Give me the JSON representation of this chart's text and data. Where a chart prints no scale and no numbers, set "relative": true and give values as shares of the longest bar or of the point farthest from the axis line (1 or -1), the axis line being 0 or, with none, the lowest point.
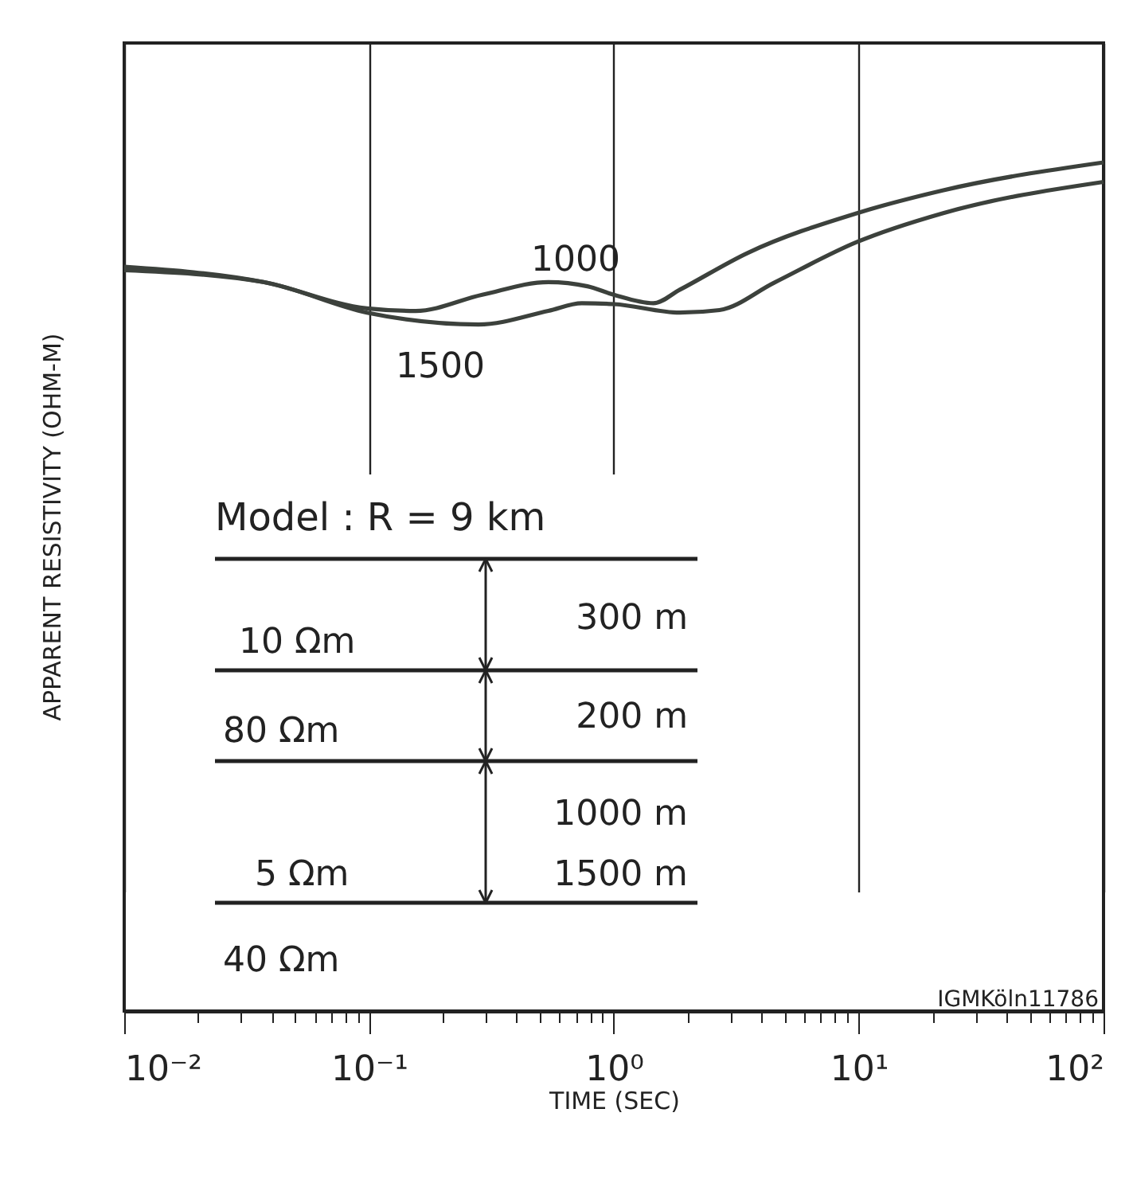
{
  "chart_data": {
    "type": "line",
    "relative": true,
    "log": "x",
    "xlabel": "TIME (SEC)",
    "ylabel": "APPARENT RESISTIVITY (OHM-M)",
    "xlim": [
      0.01,
      100
    ],
    "xticks": [
      {
        "value": 0.01,
        "label": "10⁻²"
      },
      {
        "value": 0.02,
        "label": null
      },
      {
        "value": 0.03,
        "label": null
      },
      {
        "value": 0.04,
        "label": null
      },
      {
        "value": 0.05,
        "label": null
      },
      {
        "value": 0.06,
        "label": null
      },
      {
        "value": 0.07,
        "label": null
      },
      {
        "value": 0.08,
        "label": null
      },
      {
        "value": 0.09,
        "label": null
      },
      {
        "value": 0.1,
        "label": "10⁻¹"
      },
      {
        "value": 0.2,
        "label": null
      },
      {
        "value": 0.3,
        "label": null
      },
      {
        "value": 0.4,
        "label": null
      },
      {
        "value": 0.5,
        "label": null
      },
      {
        "value": 0.6,
        "label": null
      },
      {
        "value": 0.7,
        "label": null
      },
      {
        "value": 0.8,
        "label": null
      },
      {
        "value": 0.9,
        "label": null
      },
      {
        "value": 1,
        "label": "10⁰"
      },
      {
        "value": 2,
        "label": null
      },
      {
        "value": 3,
        "label": null
      },
      {
        "value": 4,
        "label": null
      },
      {
        "value": 5,
        "label": null
      },
      {
        "value": 6,
        "label": null
      },
      {
        "value": 7,
        "label": null
      },
      {
        "value": 8,
        "label": null
      },
      {
        "value": 9,
        "label": null
      },
      {
        "value": 10,
        "label": "10¹"
      },
      {
        "value": 20,
        "label": null
      },
      {
        "value": 30,
        "label": null
      },
      {
        "value": 40,
        "label": null
      },
      {
        "value": 50,
        "label": null
      },
      {
        "value": 60,
        "label": null
      },
      {
        "value": 70,
        "label": null
      },
      {
        "value": 80,
        "label": null
      },
      {
        "value": 90,
        "label": null
      },
      {
        "value": 100,
        "label": "10²"
      }
    ],
    "grid": "x",
    "legend": false,
    "marker": "none",
    "line_style": "solid",
    "series": [
      {
        "name": "1000",
        "color": "#3c413c",
        "x": [
          0.01,
          0.037,
          0.098,
          0.155,
          0.29,
          0.54,
          0.78,
          1.0,
          1.45,
          1.86,
          3.5,
          9.8,
          22,
          100
        ],
        "values": [
          0.877,
          0.859,
          0.828,
          0.825,
          0.844,
          0.859,
          0.854,
          0.844,
          0.834,
          0.85,
          0.893,
          0.94,
          0.967,
          1
        ]
      },
      {
        "name": "1500",
        "color": "#3c413c",
        "x": [
          0.01,
          0.037,
          0.098,
          0.28,
          0.54,
          0.74,
          1.0,
          1.86,
          2.7,
          4.5,
          9.8,
          22,
          100
        ],
        "values": [
          0.873,
          0.859,
          0.823,
          0.809,
          0.825,
          0.834,
          0.833,
          0.823,
          0.826,
          0.858,
          0.906,
          0.94,
          0.977
        ]
      }
    ],
    "annotations": [
      "Model :  R = 9 km",
      "10 Ωm",
      "300 m",
      "80 Ωm",
      "200 m",
      "1000 m",
      "5 Ωm",
      "1500 m",
      "40 Ωm",
      "IGMKöln11786"
    ]
  }
}
